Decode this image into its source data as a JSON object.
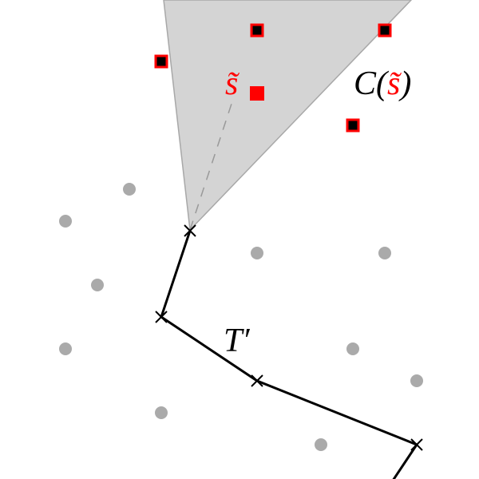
{
  "labels": {
    "s_tilde": "s̃",
    "cone_prefix": "C(",
    "cone_arg": "s̃",
    "cone_suffix": ")",
    "path": "T′"
  },
  "colors": {
    "cone_fill": "#d4d4d4",
    "cone_edge": "#a8a8a8",
    "highlight": "#ff0000",
    "point_gray": "#aaaaaa",
    "path": "#000000"
  }
}
